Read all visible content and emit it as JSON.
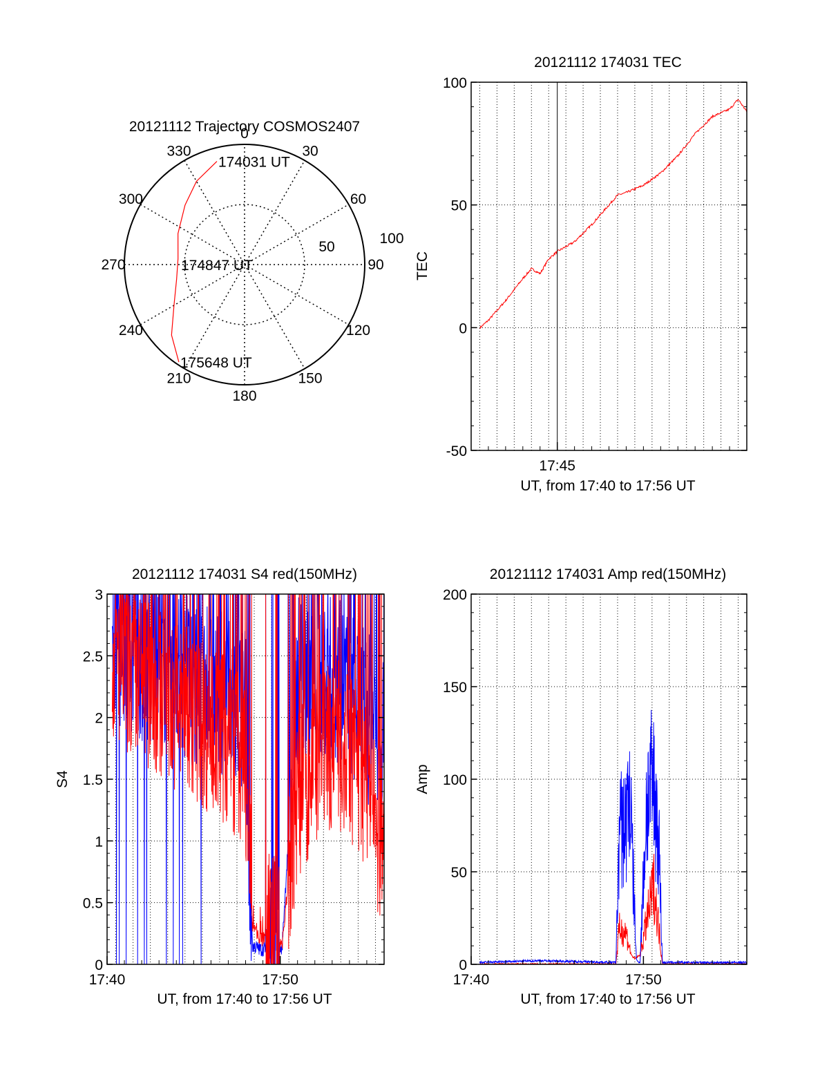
{
  "figure": {
    "background": "#ffffff",
    "colors": {
      "red_series": "#ff0000",
      "blue_series": "#0000ff",
      "axis": "#000000",
      "grid": "#000000"
    }
  },
  "chart_data": [
    {
      "type": "polar",
      "title": "20121112 Trajectory COSMOS2407",
      "angle_labels": [
        "0",
        "30",
        "60",
        "90",
        "120",
        "150",
        "180",
        "210",
        "240",
        "270",
        "300",
        "330"
      ],
      "radius_labels": [
        "50",
        "100"
      ],
      "grid": true,
      "series": [
        {
          "color": "#ff0000",
          "points": [
            {
              "az": 345,
              "el": 10
            },
            {
              "az": 330,
              "el": 18
            },
            {
              "az": 315,
              "el": 27
            },
            {
              "az": 295,
              "el": 35
            },
            {
              "az": 275,
              "el": 40
            },
            {
              "az": 258,
              "el": 38
            },
            {
              "az": 240,
              "el": 29
            },
            {
              "az": 226,
              "el": 14
            },
            {
              "az": 214,
              "el": 2
            }
          ]
        }
      ],
      "annotations": [
        {
          "text": "174031 UT",
          "az": 345,
          "el": 10
        },
        {
          "text": "174847 UT",
          "az": 0,
          "el": 90
        },
        {
          "text": "175648 UT",
          "az": 214,
          "el": 2
        }
      ]
    },
    {
      "type": "line",
      "title": "20121112 174031 TEC",
      "xlabel": "UT, from 17:40 to 17:56 UT",
      "ylabel": "TEC",
      "xlim_min": [
        0,
        16
      ],
      "ylim": [
        -50,
        100
      ],
      "yticks": [
        "-50",
        "0",
        "50",
        "100"
      ],
      "xticks": [
        {
          "x": 5,
          "label": "17:45"
        }
      ],
      "grid": true,
      "series": [
        {
          "color": "#ff0000",
          "x": [
            0.52,
            1,
            2,
            3,
            3.5,
            4,
            4.5,
            5,
            6,
            7,
            8,
            8.5,
            9,
            10,
            11,
            12,
            13,
            14,
            15,
            15.5,
            16
          ],
          "y": [
            0,
            3,
            11,
            20,
            24,
            22,
            28,
            31,
            35,
            42,
            50,
            54,
            55,
            58,
            63,
            70,
            79,
            86,
            89,
            93,
            88
          ]
        }
      ]
    },
    {
      "type": "line",
      "title": "20121112 174031 S4 red(150MHz)",
      "xlabel": "UT, from 17:40 to 17:56 UT",
      "ylabel": "S4",
      "xlim_min": [
        0,
        16
      ],
      "ylim": [
        0,
        3
      ],
      "yticks": [
        "0",
        "0.5",
        "1",
        "1.5",
        "2",
        "2.5",
        "3"
      ],
      "xticks": [
        {
          "x": 0,
          "label": "17:40"
        },
        {
          "x": 10,
          "label": "17:50"
        }
      ],
      "grid": true,
      "series": [
        {
          "color": "#ff0000",
          "x": [
            0.3,
            1,
            2,
            3,
            4,
            5,
            6,
            7,
            8,
            8.4,
            8.9,
            9.5,
            10.1,
            11,
            12,
            13,
            14,
            15,
            16
          ],
          "y": [
            2.5,
            2.4,
            2.3,
            2.2,
            2.1,
            2.0,
            1.9,
            1.8,
            1.6,
            0.3,
            0.2,
            0.25,
            0.15,
            1.4,
            1.6,
            1.8,
            1.7,
            1.4,
            0.9
          ]
        },
        {
          "color": "#0000ff",
          "x": [
            0.3,
            1,
            2,
            3,
            4,
            5,
            6,
            7,
            8,
            8.4,
            8.9,
            9.5,
            10.1,
            11,
            12,
            13,
            14,
            15,
            16
          ],
          "y": [
            2.6,
            2.6,
            2.5,
            2.5,
            2.4,
            2.3,
            2.3,
            2.2,
            2.0,
            0.15,
            0.12,
            0.15,
            0.12,
            2.3,
            2.4,
            2.3,
            2.2,
            2.0,
            1.9
          ]
        }
      ]
    },
    {
      "type": "line",
      "title": "20121112 174031 Amp red(150MHz)",
      "xlabel": "UT, from 17:40 to 17:56 UT",
      "ylabel": "Amp",
      "xlim_min": [
        0,
        16
      ],
      "ylim": [
        0,
        200
      ],
      "yticks": [
        "0",
        "50",
        "100",
        "150",
        "200"
      ],
      "xticks": [
        {
          "x": 0,
          "label": "17:40"
        },
        {
          "x": 10,
          "label": "17:50"
        }
      ],
      "grid": true,
      "series": [
        {
          "color": "#ff0000",
          "x": [
            0.5,
            8.4,
            8.6,
            9.0,
            9.3,
            9.5,
            9.8,
            10.2,
            10.6,
            10.9,
            11.1,
            16
          ],
          "y": [
            0,
            0,
            20,
            18,
            5,
            3,
            5,
            25,
            45,
            20,
            0,
            0
          ]
        },
        {
          "color": "#0000ff",
          "x": [
            0.5,
            4,
            8.4,
            8.6,
            9.0,
            9.2,
            9.4,
            9.6,
            9.8,
            10.2,
            10.6,
            10.9,
            11.1,
            16
          ],
          "y": [
            1,
            2,
            1,
            75,
            80,
            100,
            50,
            2,
            1,
            95,
            100,
            70,
            1,
            1
          ]
        }
      ]
    }
  ]
}
